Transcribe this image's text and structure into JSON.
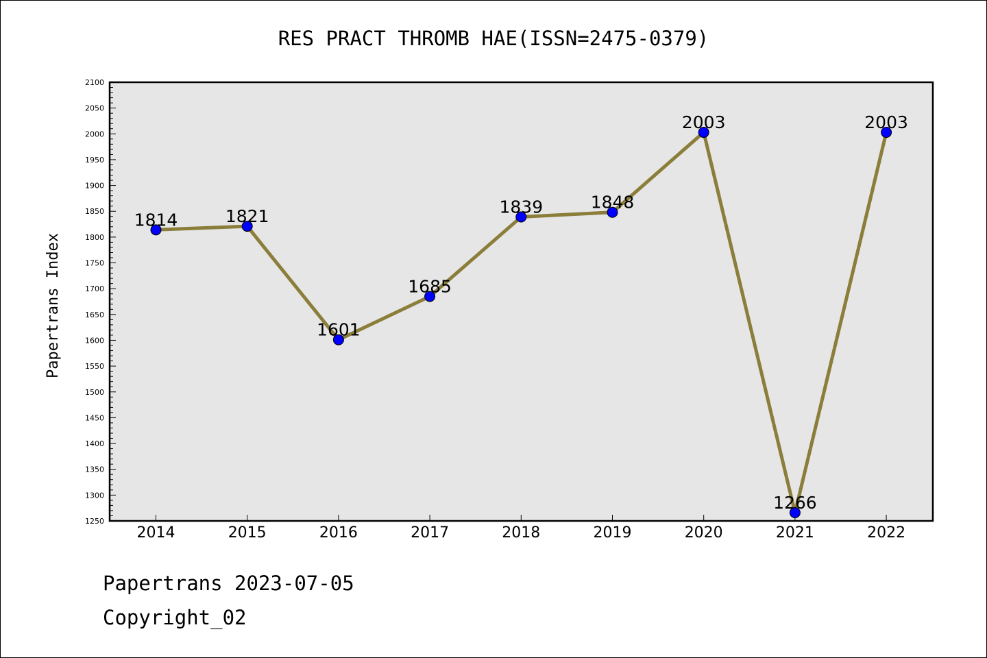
{
  "chart_data": {
    "type": "line",
    "title": "RES PRACT THROMB HAE(ISSN=2475-0379)",
    "xlabel": "",
    "ylabel": "Papertrans Index",
    "categories": [
      "2014",
      "2015",
      "2016",
      "2017",
      "2018",
      "2019",
      "2020",
      "2021",
      "2022"
    ],
    "series": [
      {
        "values": [
          1814,
          1821,
          1601,
          1685,
          1839,
          1848,
          2003,
          1266,
          2003
        ]
      }
    ],
    "data_labels": [
      "1814",
      "1821",
      "1601",
      "1685",
      "1839",
      "1848",
      "2003",
      "1266",
      "2003"
    ],
    "ylim": [
      1250,
      2100
    ],
    "yticks": [
      "1250",
      "1300",
      "1350",
      "1400",
      "1450",
      "1500",
      "1550",
      "1600",
      "1650",
      "1700",
      "1750",
      "1800",
      "1850",
      "1900",
      "1950",
      "2000",
      "2050",
      "2100"
    ],
    "grid": false,
    "legend": "none",
    "colors": {
      "line": "#8b7d3a",
      "marker": "#0000ff",
      "plot_background": "#e6e6e6"
    }
  },
  "footer": {
    "date_line": "Papertrans 2023-07-05",
    "copyright": "Copyright_02"
  }
}
